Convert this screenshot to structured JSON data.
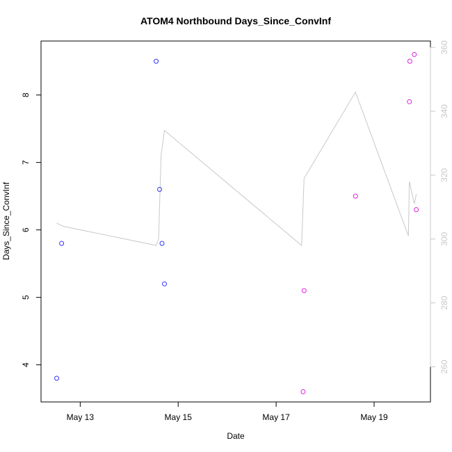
{
  "chart_data": {
    "type": "scatter",
    "title": "ATOM4 Northbound Days_Since_ConvInf",
    "xlabel": "Date",
    "ylabel": "Days_Since_ConvInf",
    "x_ticks": [
      "May 13",
      "May 15",
      "May 17",
      "May 19"
    ],
    "x_tick_days": [
      13,
      15,
      17,
      19
    ],
    "xlim": [
      12.2,
      20.15
    ],
    "ylim": [
      3.45,
      8.8
    ],
    "y_ticks": [
      4,
      5,
      6,
      7,
      8
    ],
    "y2lim": [
      249,
      362
    ],
    "y2_ticks": [
      260,
      280,
      300,
      320,
      340,
      360
    ],
    "colors": {
      "early": "#3333ff",
      "late": "#dd22dd",
      "line": "#c8c8c8"
    },
    "series": [
      {
        "values": [
          {
            "x": 12.52,
            "y": 3.8
          },
          {
            "x": 12.62,
            "y": 5.8
          },
          {
            "x": 14.55,
            "y": 8.5
          },
          {
            "x": 14.62,
            "y": 6.6
          },
          {
            "x": 14.67,
            "y": 5.8
          },
          {
            "x": 14.72,
            "y": 5.2
          }
        ]
      },
      {
        "values": [
          {
            "x": 17.55,
            "y": 3.6
          },
          {
            "x": 17.57,
            "y": 5.1
          },
          {
            "x": 18.62,
            "y": 6.5
          },
          {
            "x": 19.72,
            "y": 7.9
          },
          {
            "x": 19.73,
            "y": 8.5
          },
          {
            "x": 19.82,
            "y": 8.6
          },
          {
            "x": 19.86,
            "y": 6.3
          }
        ]
      },
      {
        "axis": "right",
        "values": [
          {
            "x": 12.52,
            "y": 305
          },
          {
            "x": 12.65,
            "y": 304
          },
          {
            "x": 14.55,
            "y": 298
          },
          {
            "x": 14.6,
            "y": 300
          },
          {
            "x": 14.65,
            "y": 326
          },
          {
            "x": 14.72,
            "y": 334
          },
          {
            "x": 17.52,
            "y": 298
          },
          {
            "x": 17.57,
            "y": 319
          },
          {
            "x": 18.62,
            "y": 346
          },
          {
            "x": 19.7,
            "y": 301
          },
          {
            "x": 19.72,
            "y": 318
          },
          {
            "x": 19.82,
            "y": 311
          },
          {
            "x": 19.86,
            "y": 314
          }
        ]
      }
    ]
  }
}
